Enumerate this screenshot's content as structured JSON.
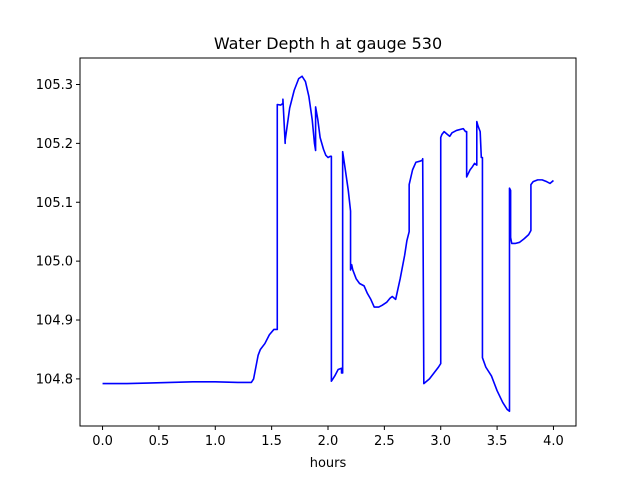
{
  "chart_data": {
    "type": "line",
    "title": "Water Depth h at gauge 530",
    "xlabel": "hours",
    "ylabel": "",
    "xlim": [
      -0.2,
      4.2
    ],
    "ylim": [
      104.72,
      105.345
    ],
    "x_ticks": [
      0.0,
      0.5,
      1.0,
      1.5,
      2.0,
      2.5,
      3.0,
      3.5,
      4.0
    ],
    "x_tick_labels": [
      "0.0",
      "0.5",
      "1.0",
      "1.5",
      "2.0",
      "2.5",
      "3.0",
      "3.5",
      "4.0"
    ],
    "y_ticks": [
      104.8,
      104.9,
      105.0,
      105.1,
      105.2,
      105.3
    ],
    "y_tick_labels": [
      "104.8",
      "104.9",
      "105.0",
      "105.1",
      "105.2",
      "105.3"
    ],
    "grid": false,
    "series": [
      {
        "color": "#0000ff",
        "x": [
          0.0,
          0.2,
          0.4,
          0.6,
          0.8,
          1.0,
          1.2,
          1.32,
          1.34,
          1.36,
          1.38,
          1.4,
          1.44,
          1.48,
          1.52,
          1.55,
          1.55,
          1.58,
          1.6,
          1.6,
          1.62,
          1.62,
          1.66,
          1.7,
          1.74,
          1.77,
          1.8,
          1.83,
          1.86,
          1.88,
          1.89,
          1.89,
          1.91,
          1.93,
          1.96,
          1.98,
          2.0,
          2.02,
          2.03,
          2.03,
          2.06,
          2.09,
          2.12,
          2.12,
          2.13,
          2.13,
          2.15,
          2.18,
          2.2,
          2.2,
          2.21,
          2.22,
          2.25,
          2.28,
          2.32,
          2.35,
          2.38,
          2.41,
          2.45,
          2.48,
          2.52,
          2.55,
          2.57,
          2.6,
          2.64,
          2.68,
          2.7,
          2.72,
          2.72,
          2.75,
          2.78,
          2.82,
          2.84,
          2.84,
          2.85,
          2.9,
          2.94,
          2.98,
          3.0,
          3.0,
          3.01,
          3.03,
          3.06,
          3.08,
          3.1,
          3.14,
          3.2,
          3.22,
          3.23,
          3.23,
          3.26,
          3.28,
          3.3,
          3.32,
          3.32,
          3.33,
          3.33,
          3.35,
          3.36,
          3.37,
          3.37,
          3.4,
          3.45,
          3.5,
          3.55,
          3.59,
          3.61,
          3.61,
          3.62,
          3.62,
          3.63,
          3.66,
          3.7,
          3.74,
          3.78,
          3.8,
          3.8,
          3.82,
          3.86,
          3.9,
          3.94,
          3.97,
          4.0
        ],
        "y": [
          104.792,
          104.792,
          104.793,
          104.794,
          104.795,
          104.795,
          104.794,
          104.794,
          104.8,
          104.82,
          104.84,
          104.85,
          104.86,
          104.875,
          104.884,
          104.884,
          105.266,
          105.265,
          105.268,
          105.275,
          105.2,
          105.205,
          105.26,
          105.29,
          105.31,
          105.314,
          105.305,
          105.28,
          105.24,
          105.2,
          105.188,
          105.262,
          105.24,
          105.21,
          105.19,
          105.18,
          105.176,
          105.178,
          105.178,
          104.796,
          104.805,
          104.816,
          104.818,
          104.81,
          104.81,
          105.186,
          105.16,
          105.12,
          105.085,
          104.985,
          104.994,
          104.985,
          104.97,
          104.962,
          104.958,
          104.945,
          104.935,
          104.922,
          104.922,
          104.925,
          104.93,
          104.937,
          104.94,
          104.935,
          104.97,
          105.01,
          105.035,
          105.05,
          105.13,
          105.155,
          105.168,
          105.17,
          105.172,
          105.174,
          104.792,
          104.8,
          104.81,
          104.82,
          104.826,
          105.21,
          105.215,
          105.22,
          105.215,
          105.212,
          105.218,
          105.222,
          105.225,
          105.22,
          105.22,
          105.143,
          105.155,
          105.16,
          105.166,
          105.163,
          105.237,
          105.23,
          105.23,
          105.22,
          105.176,
          105.176,
          104.836,
          104.82,
          104.805,
          104.78,
          104.76,
          104.748,
          104.745,
          105.124,
          105.12,
          105.04,
          105.03,
          105.03,
          105.032,
          105.038,
          105.045,
          105.052,
          105.13,
          105.135,
          105.138,
          105.138,
          105.135,
          105.132,
          105.137
        ]
      }
    ]
  }
}
